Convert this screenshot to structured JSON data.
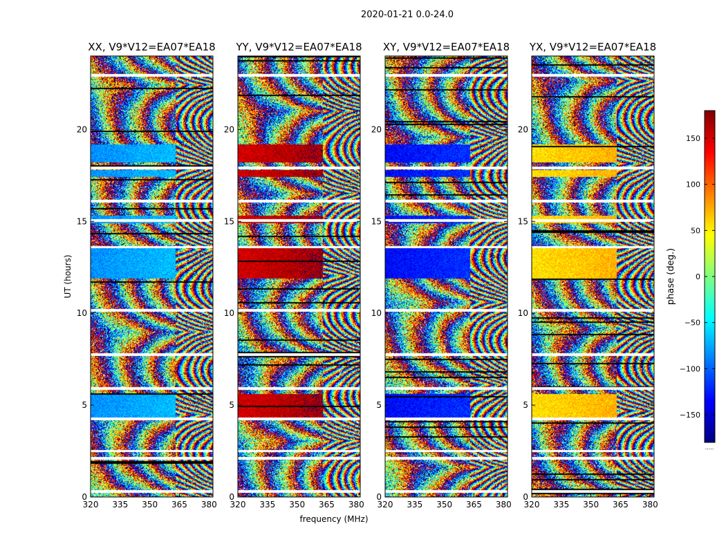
{
  "figure": {
    "suptitle": "2020-01-21 0.0-24.0"
  },
  "colormap": {
    "name": "jet",
    "stops": [
      "#00007f",
      "#0000ff",
      "#007fff",
      "#00ffff",
      "#7fff7f",
      "#ffff00",
      "#ff7f00",
      "#ff0000",
      "#7f0000"
    ],
    "gap_color": "#ffffff",
    "noise_color": "#000000"
  },
  "chart_data": [
    {
      "type": "heatmap",
      "title": "XX, V9*V12=EA07*EA18",
      "xlabel": "",
      "ylabel": "UT (hours)",
      "xlim": [
        320,
        382
      ],
      "ylim": [
        0,
        24
      ],
      "xticks": [
        320,
        335,
        350,
        365,
        380
      ],
      "yticks": [
        0,
        5,
        10,
        15,
        20
      ],
      "xtick_labels": [
        "320",
        "335",
        "350",
        "365",
        "380"
      ],
      "ytick_labels": [
        "0",
        "5",
        "10",
        "15",
        "20"
      ],
      "base_phase": -85
    },
    {
      "type": "heatmap",
      "title": "YY, V9*V12=EA07*EA18",
      "xlabel": "frequency (MHz)",
      "ylabel": "",
      "xlim": [
        320,
        382
      ],
      "ylim": [
        0,
        24
      ],
      "xticks": [
        320,
        335,
        350,
        365,
        380
      ],
      "yticks": [
        0,
        5,
        10,
        15,
        20
      ],
      "xtick_labels": [
        "320",
        "335",
        "350",
        "365",
        "380"
      ],
      "ytick_labels": [
        "0",
        "5",
        "10",
        "15",
        "20"
      ],
      "base_phase": 150
    },
    {
      "type": "heatmap",
      "title": "XY, V9*V12=EA07*EA18",
      "xlabel": "",
      "ylabel": "",
      "xlim": [
        320,
        382
      ],
      "ylim": [
        0,
        24
      ],
      "xticks": [
        320,
        335,
        350,
        365,
        380
      ],
      "yticks": [
        0,
        5,
        10,
        15,
        20
      ],
      "xtick_labels": [
        "320",
        "335",
        "350",
        "365",
        "380"
      ],
      "ytick_labels": [
        "0",
        "5",
        "10",
        "15",
        "20"
      ],
      "base_phase": -135
    },
    {
      "type": "heatmap",
      "title": "YX, V9*V12=EA07*EA18",
      "xlabel": "",
      "ylabel": "",
      "xlim": [
        320,
        382
      ],
      "ylim": [
        0,
        24
      ],
      "xticks": [
        320,
        335,
        350,
        365,
        380
      ],
      "yticks": [
        0,
        5,
        10,
        15,
        20
      ],
      "xtick_labels": [
        "320",
        "335",
        "350",
        "365",
        "380"
      ],
      "ytick_labels": [
        "0",
        "5",
        "10",
        "15",
        "20"
      ],
      "base_phase": 55
    }
  ],
  "colorbar": {
    "label": "phase (deg.)",
    "range": [
      -180,
      180
    ],
    "ticks": [
      150,
      100,
      50,
      0,
      -50,
      -100,
      -150
    ],
    "tick_labels": [
      "150",
      "100",
      "50",
      "0",
      "−50",
      "−100",
      "−150"
    ],
    "footer": "....."
  },
  "time_gaps_hours": [
    0.3,
    2.1,
    2.5,
    4.25,
    5.9,
    7.75,
    10.15,
    13.6,
    15.05,
    16.1,
    17.9,
    22.95
  ],
  "coherent_intervals_hours": [
    [
      4.3,
      5.6
    ],
    [
      11.9,
      13.6
    ],
    [
      14.9,
      15.3
    ],
    [
      17.4,
      17.8
    ],
    [
      18.2,
      19.2
    ]
  ],
  "coherent_freq_edge_mhz": 363
}
